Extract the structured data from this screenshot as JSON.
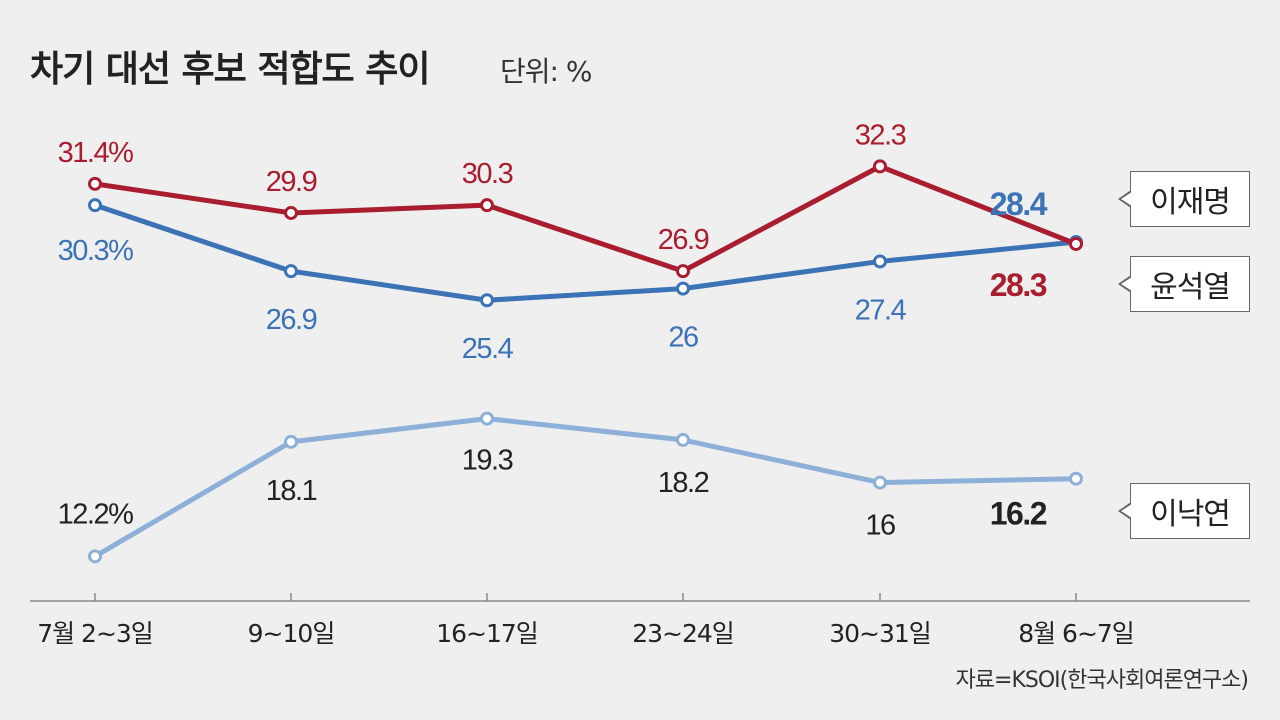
{
  "header": {
    "title": "차기 대선 후보 적합도 추이",
    "unit": "단위: %"
  },
  "source": "자료=KSOI(한국사회여론연구소)",
  "colors": {
    "lee_jaemyung": "#3b73b6",
    "yoon_seokyeol": "#a91d2e",
    "lee_nakyon": "#8db0d9",
    "background": "#efefef"
  },
  "chart_data": {
    "type": "line",
    "title": "차기 대선 후보 적합도 추이",
    "ylabel": "단위: %",
    "categories": [
      "7월 2~3일",
      "9~10일",
      "16~17일",
      "23~24일",
      "30~31일",
      "8월 6~7일"
    ],
    "ylim": [
      0,
      40
    ],
    "grid": false,
    "series": [
      {
        "name": "윤석열",
        "values": [
          31.4,
          29.9,
          30.3,
          26.9,
          32.3,
          28.3
        ],
        "labels": [
          "31.4%",
          "29.9",
          "30.3",
          "26.9",
          "32.3",
          "28.3"
        ]
      },
      {
        "name": "이재명",
        "values": [
          30.3,
          26.9,
          25.4,
          26,
          27.4,
          28.4
        ],
        "labels": [
          "30.3%",
          "26.9",
          "25.4",
          "26",
          "27.4",
          "28.4"
        ]
      },
      {
        "name": "이낙연",
        "values": [
          12.2,
          18.1,
          19.3,
          18.2,
          16,
          16.2
        ],
        "labels": [
          "12.2%",
          "18.1",
          "19.3",
          "18.2",
          "16",
          "16.2"
        ]
      }
    ]
  }
}
